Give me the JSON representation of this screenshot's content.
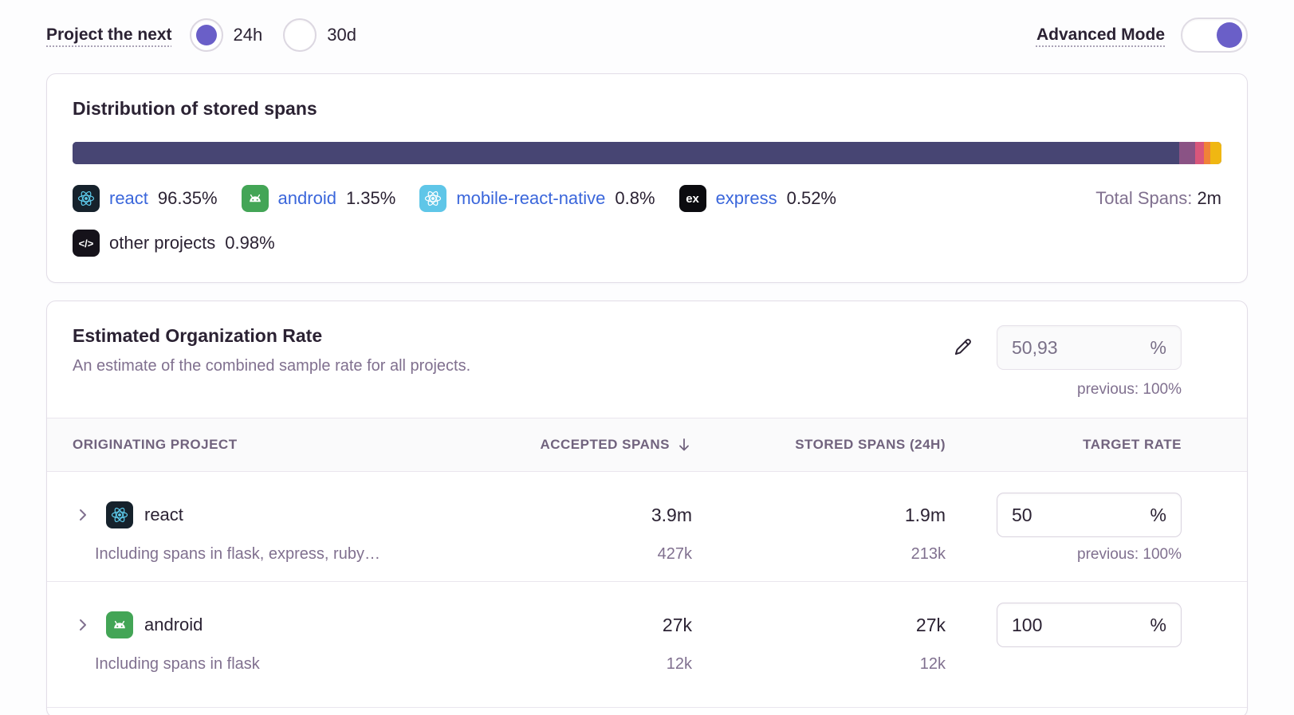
{
  "topbar": {
    "project_next_label": "Project the next",
    "periods": [
      {
        "label": "24h",
        "selected": true
      },
      {
        "label": "30d",
        "selected": false
      }
    ],
    "advanced_mode_label": "Advanced Mode",
    "advanced_mode_on": true
  },
  "distribution": {
    "title": "Distribution of stored spans",
    "total_label": "Total Spans:",
    "total_value": "2m",
    "segments": [
      {
        "name": "react",
        "pct": 96.35,
        "color": "#474573"
      },
      {
        "name": "android",
        "pct": 1.35,
        "color": "#8a5385"
      },
      {
        "name": "mobile-react-native",
        "pct": 0.8,
        "color": "#d9567b"
      },
      {
        "name": "express",
        "pct": 0.52,
        "color": "#f08238"
      },
      {
        "name": "other projects",
        "pct": 0.98,
        "color": "#f0b712"
      }
    ],
    "legend": [
      {
        "project": "react",
        "value": "96.35%"
      },
      {
        "project": "android",
        "value": "1.35%"
      },
      {
        "project": "mobile-react-native",
        "value": "0.8%"
      },
      {
        "project": "express",
        "value": "0.52%"
      },
      {
        "project": "other projects",
        "value": "0.98%"
      }
    ]
  },
  "org_rate": {
    "title": "Estimated Organization Rate",
    "description": "An estimate of the combined sample rate for all projects.",
    "value": "50,93",
    "unit": "%",
    "previous": "previous: 100%"
  },
  "table": {
    "headers": {
      "project": "Originating Project",
      "accepted": "Accepted Spans",
      "stored": "Stored Spans (24h)",
      "rate": "Target Rate"
    },
    "rows": [
      {
        "name": "react",
        "accepted": "3.9m",
        "stored": "1.9m",
        "rate": "50",
        "unit": "%",
        "previous": "previous: 100%",
        "sub_label": "Including spans in flask, express, ruby…",
        "sub_accepted": "427k",
        "sub_stored": "213k"
      },
      {
        "name": "android",
        "accepted": "27k",
        "stored": "27k",
        "rate": "100",
        "unit": "%",
        "previous": "",
        "sub_label": "Including spans in flask",
        "sub_accepted": "12k",
        "sub_stored": "12k"
      }
    ]
  }
}
